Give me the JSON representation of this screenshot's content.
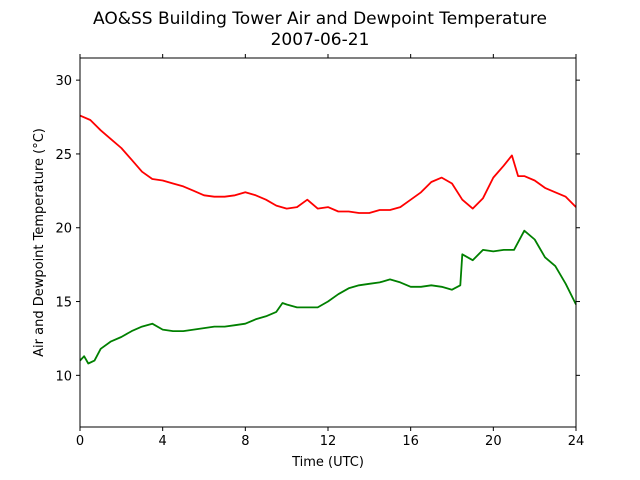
{
  "chart_data": {
    "type": "line",
    "title": "AO&SS Building Tower Air and Dewpoint Temperature",
    "subtitle": "2007-06-21",
    "xlabel": "Time (UTC)",
    "ylabel": "Air and Dewpoint Temperature (°C)",
    "xlim": [
      0,
      24
    ],
    "ylim": [
      6.5,
      31.5
    ],
    "xticks": [
      0,
      4,
      8,
      12,
      16,
      20,
      24
    ],
    "yticks": [
      10,
      15,
      20,
      25,
      30
    ],
    "grid": false,
    "legend": "none",
    "series": [
      {
        "color": "#ff0000",
        "x": [
          0,
          0.5,
          1,
          1.5,
          2,
          2.5,
          3,
          3.5,
          4,
          4.5,
          5,
          5.5,
          6,
          6.5,
          7,
          7.5,
          8,
          8.5,
          9,
          9.5,
          10,
          10.5,
          11,
          11.5,
          12,
          12.5,
          13,
          13.5,
          14,
          14.5,
          15,
          15.5,
          16,
          16.5,
          17,
          17.5,
          18,
          18.5,
          19,
          19.5,
          20,
          20.5,
          20.9,
          21.2,
          21.5,
          22,
          22.5,
          23,
          23.5,
          24
        ],
        "y": [
          27.6,
          27.3,
          26.6,
          26.0,
          25.4,
          24.6,
          23.8,
          23.3,
          23.2,
          23.0,
          22.8,
          22.5,
          22.2,
          22.1,
          22.1,
          22.2,
          22.4,
          22.2,
          21.9,
          21.5,
          21.3,
          21.4,
          21.9,
          21.3,
          21.4,
          21.1,
          21.1,
          21.0,
          21.0,
          21.2,
          21.2,
          21.4,
          21.9,
          22.4,
          23.1,
          23.4,
          23.0,
          21.9,
          21.3,
          22.0,
          23.4,
          24.2,
          24.9,
          23.5,
          23.5,
          23.2,
          22.7,
          22.4,
          22.1,
          21.4
        ]
      },
      {
        "color": "#008000",
        "x": [
          0,
          0.2,
          0.4,
          0.7,
          1,
          1.5,
          2,
          2.5,
          3,
          3.5,
          4,
          4.5,
          5,
          5.5,
          6,
          6.5,
          7,
          7.5,
          8,
          8.5,
          9,
          9.5,
          9.8,
          10,
          10.5,
          11,
          11.5,
          12,
          12.5,
          13,
          13.5,
          14,
          14.5,
          15,
          15.5,
          16,
          16.5,
          17,
          17.5,
          18,
          18.4,
          18.5,
          19,
          19.5,
          20,
          20.5,
          21,
          21.5,
          22,
          22.5,
          23,
          23.5,
          24
        ],
        "y": [
          11.0,
          11.3,
          10.8,
          11.0,
          11.8,
          12.3,
          12.6,
          13.0,
          13.3,
          13.5,
          13.1,
          13.0,
          13.0,
          13.1,
          13.2,
          13.3,
          13.3,
          13.4,
          13.5,
          13.8,
          14.0,
          14.3,
          14.9,
          14.8,
          14.6,
          14.6,
          14.6,
          15.0,
          15.5,
          15.9,
          16.1,
          16.2,
          16.3,
          16.5,
          16.3,
          16.0,
          16.0,
          16.1,
          16.0,
          15.8,
          16.1,
          18.2,
          17.8,
          18.5,
          18.4,
          18.5,
          18.5,
          19.8,
          19.2,
          18.0,
          17.4,
          16.2,
          14.8
        ]
      }
    ]
  }
}
